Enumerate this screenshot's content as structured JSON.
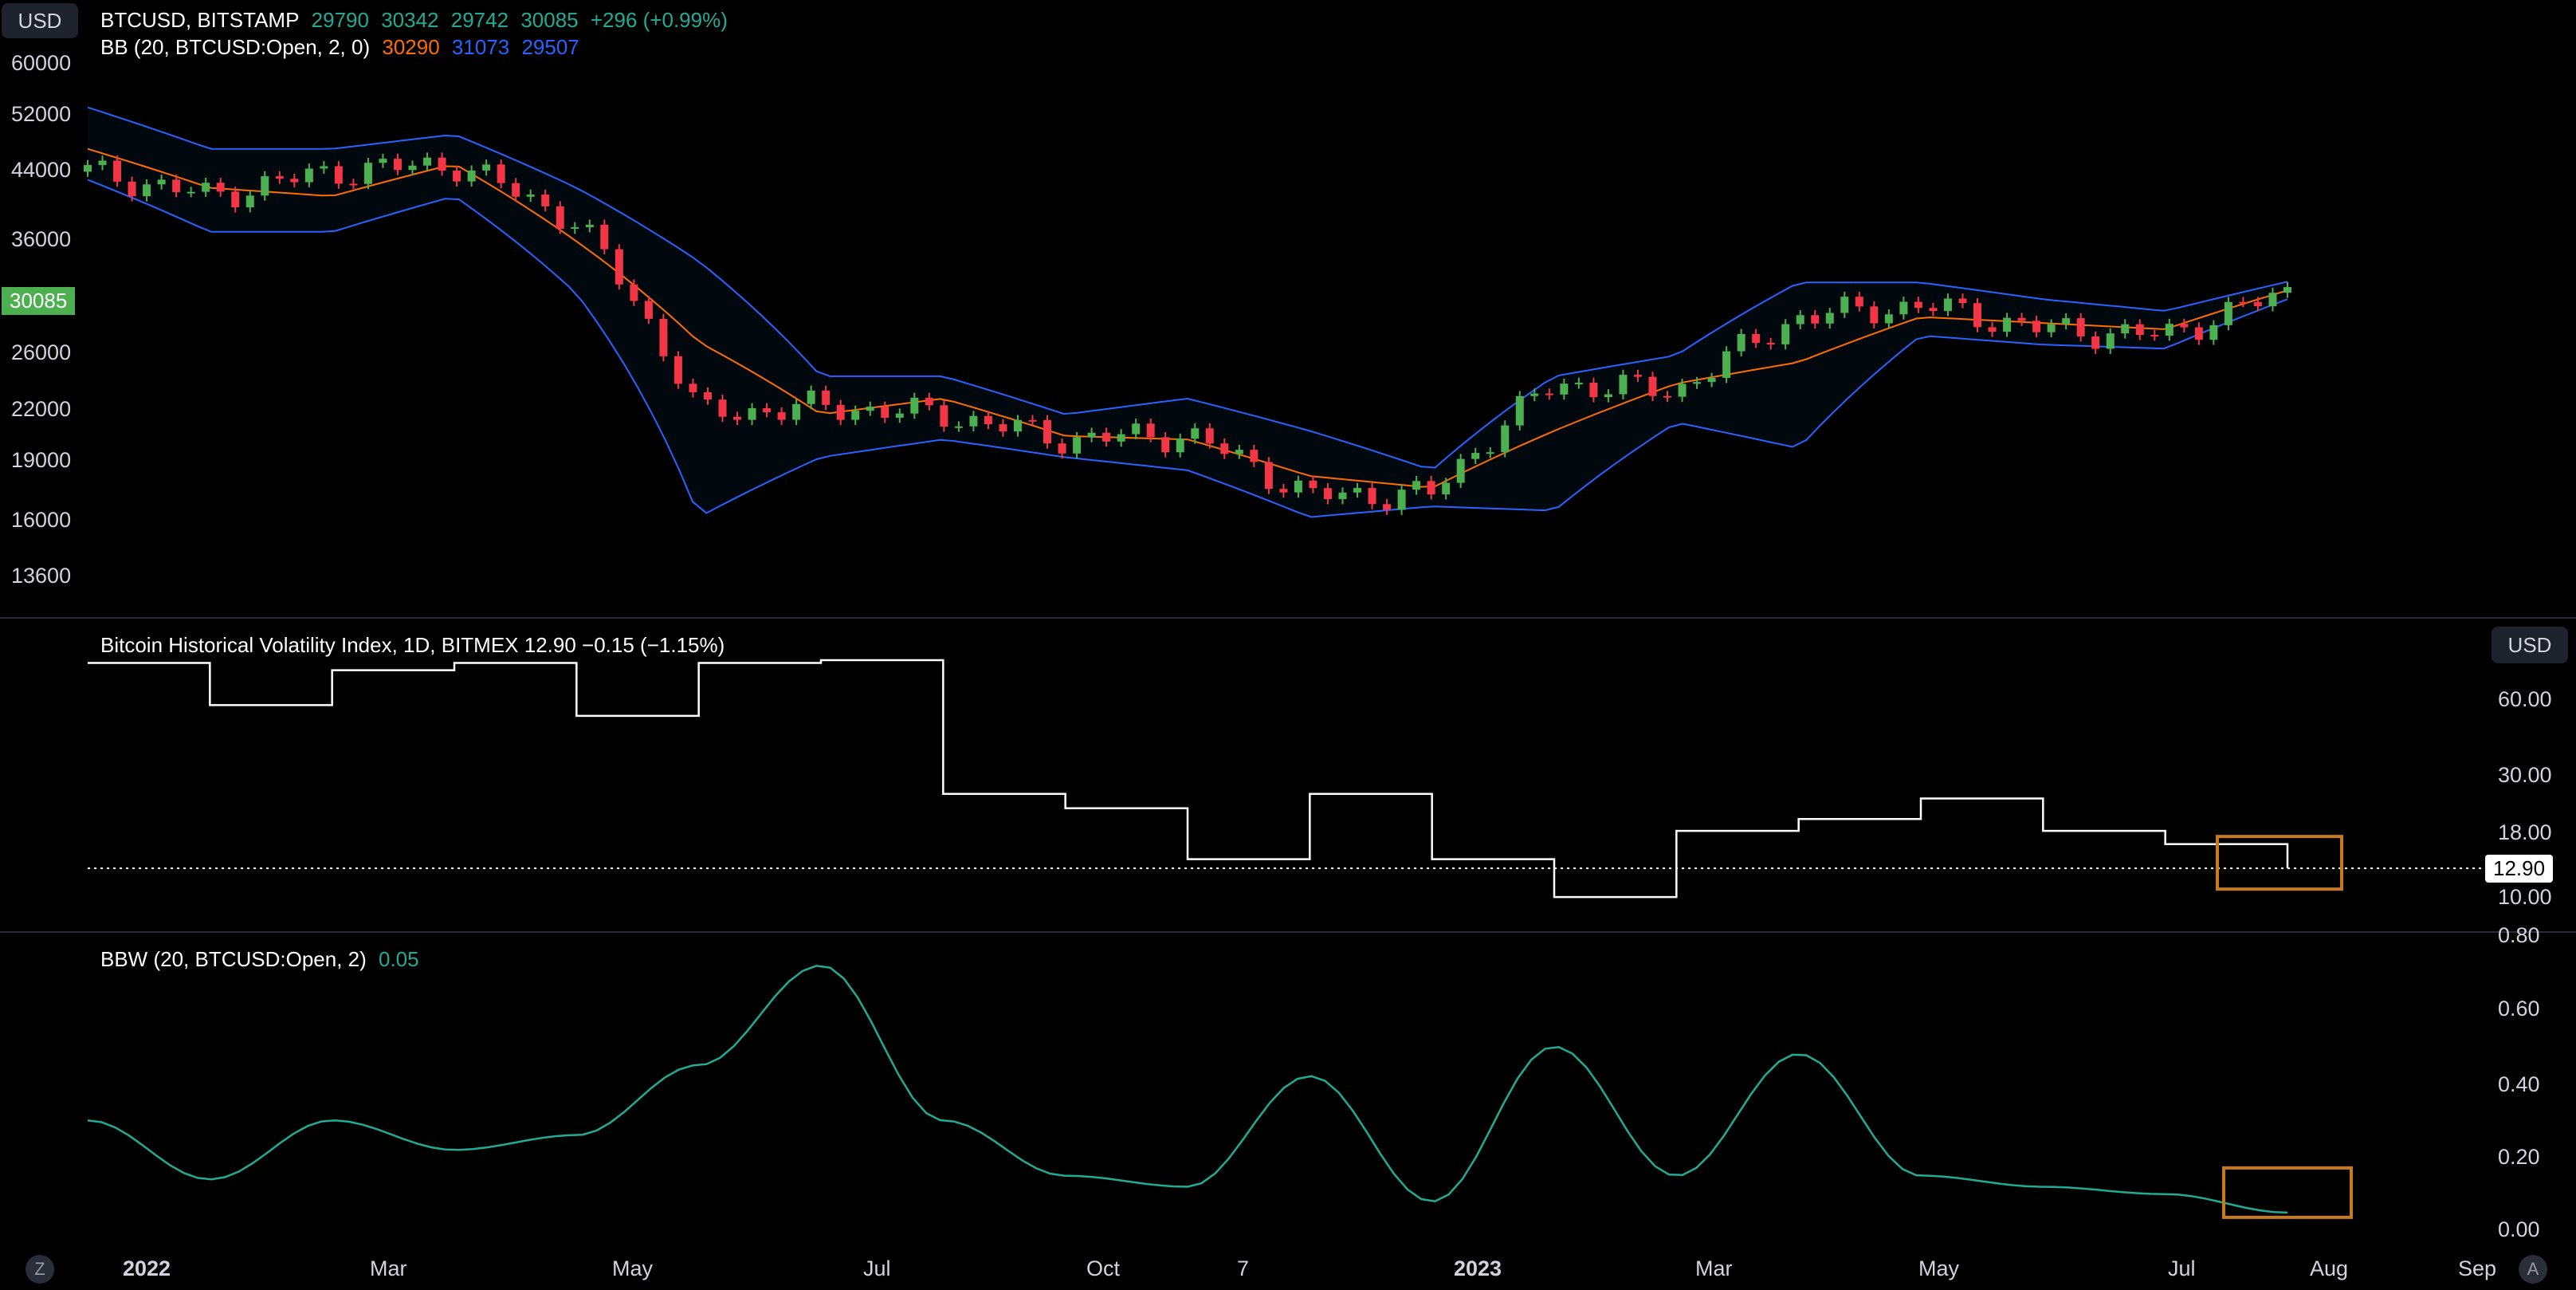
{
  "top_left_button": "USD",
  "right_button": "USD",
  "bottom_buttons": {
    "left": "Z",
    "right": "A"
  },
  "legend_main": {
    "symbol": "BTCUSD, BITSTAMP",
    "open": "29790",
    "high": "30342",
    "low": "29742",
    "close": "30085",
    "change": "+296 (+0.99%)"
  },
  "legend_bb": {
    "label": "BB (20, BTCUSD:Open, 2, 0)",
    "basis": "30290",
    "upper": "31073",
    "lower": "29507"
  },
  "legend_vol": "Bitcoin Historical Volatility Index, 1D, BITMEX  12.90  −0.15 (−1.15%)",
  "legend_bbw": {
    "label": "BBW (20, BTCUSD:Open, 2)",
    "value": "0.05"
  },
  "price_axis": [
    "60000",
    "52000",
    "44000",
    "36000",
    "30085",
    "26000",
    "22000",
    "19000",
    "16000",
    "13600"
  ],
  "price_tag": "30085",
  "vol_axis": [
    "60.00",
    "30.00",
    "18.00",
    "10.00"
  ],
  "vol_tag": "12.90",
  "bbw_axis": [
    "0.80",
    "0.60",
    "0.40",
    "0.20",
    "0.00"
  ],
  "time_axis": [
    "2022",
    "Mar",
    "May",
    "Jul",
    "Oct",
    "7",
    "2023",
    "Mar",
    "May",
    "Jul",
    "Aug",
    "Sep"
  ],
  "colors": {
    "up": "#4caf50",
    "down": "#f23645",
    "basis": "#ff6d00",
    "bands": "#2962ff",
    "vol_line": "#ffffff",
    "bbw_line": "#22ab94",
    "highlight": "#c87a1e",
    "legend_up": "#22ab94",
    "bb_basis_text": "#ff6d00",
    "bb_upper_text": "#2962ff",
    "bb_lower_text": "#2962ff"
  },
  "chart_data": [
    {
      "type": "candlestick",
      "title": "BTCUSD, BITSTAMP",
      "ylim": [
        12500,
        62000
      ],
      "x_range": [
        "2022-01-01",
        "2023-07-25"
      ],
      "x": [
        "2022-01",
        "2022-02",
        "2022-03",
        "2022-04",
        "2022-05",
        "2022-06",
        "2022-07",
        "2022-08",
        "2022-09",
        "2022-10",
        "2022-11",
        "2022-12",
        "2023-01",
        "2023-02",
        "2023-03",
        "2023-04",
        "2023-05",
        "2023-06",
        "2023-07"
      ],
      "close": [
        43000,
        40000,
        43000,
        44000,
        37000,
        21000,
        21500,
        21000,
        19500,
        19800,
        16500,
        16600,
        23000,
        22500,
        28000,
        29000,
        27000,
        26500,
        30085
      ],
      "series": [
        {
          "name": "basis",
          "values": [
            46000,
            41000,
            40000,
            44000,
            35000,
            26000,
            21000,
            22000,
            19700,
            19500,
            17500,
            16900,
            20000,
            23000,
            24500,
            28000,
            27500,
            27000,
            30290
          ]
        },
        {
          "name": "upper",
          "values": [
            52000,
            46000,
            46000,
            48000,
            41000,
            33000,
            23500,
            23500,
            21000,
            22000,
            20000,
            17800,
            23500,
            25000,
            31000,
            31000,
            29500,
            28500,
            31073
          ]
        },
        {
          "name": "lower",
          "values": [
            42000,
            36000,
            36000,
            40000,
            30000,
            15500,
            18500,
            19500,
            18500,
            17800,
            15500,
            16000,
            15800,
            20500,
            19000,
            26500,
            25800,
            25500,
            29507
          ]
        }
      ]
    },
    {
      "type": "line",
      "title": "Bitcoin Historical Volatility Index",
      "ylim": [
        9,
        100
      ],
      "x": [
        "2022-01",
        "2022-02",
        "2022-03",
        "2022-04",
        "2022-05",
        "2022-06",
        "2022-07",
        "2022-08",
        "2022-09",
        "2022-10",
        "2022-11",
        "2022-12",
        "2023-01",
        "2023-02",
        "2023-03",
        "2023-04",
        "2023-05",
        "2023-06",
        "2023-07"
      ],
      "values": [
        80,
        55,
        75,
        80,
        50,
        80,
        82,
        25,
        22,
        14,
        25,
        14,
        10,
        18,
        20,
        24,
        18,
        16,
        12.9
      ]
    },
    {
      "type": "line",
      "title": "BBW (20, BTCUSD:Open, 2)",
      "ylim": [
        0,
        0.8
      ],
      "x": [
        "2022-01",
        "2022-02",
        "2022-03",
        "2022-04",
        "2022-05",
        "2022-06",
        "2022-07",
        "2022-08",
        "2022-09",
        "2022-10",
        "2022-11",
        "2022-12",
        "2023-01",
        "2023-02",
        "2023-03",
        "2023-04",
        "2023-05",
        "2023-06",
        "2023-07"
      ],
      "values": [
        0.3,
        0.14,
        0.3,
        0.22,
        0.26,
        0.45,
        0.72,
        0.3,
        0.15,
        0.12,
        0.42,
        0.08,
        0.5,
        0.15,
        0.48,
        0.15,
        0.12,
        0.1,
        0.05
      ]
    }
  ]
}
